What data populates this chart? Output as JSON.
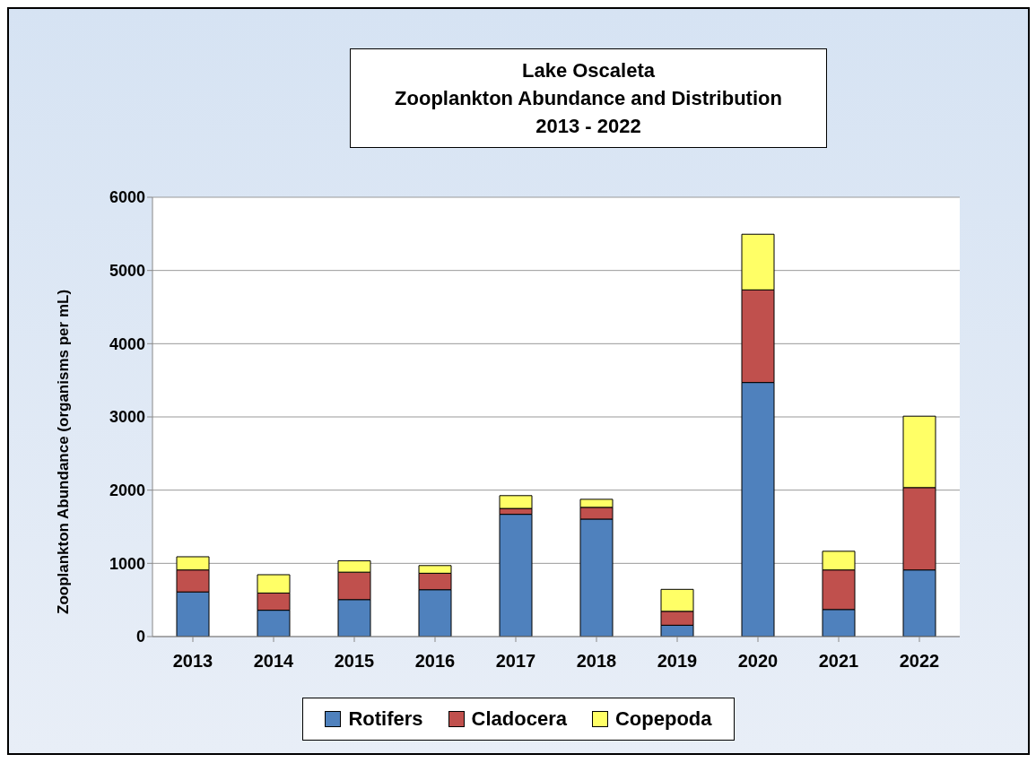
{
  "chart_data": {
    "type": "bar",
    "title": "Lake Oscaleta\nZooplankton Abundance and Distribution\n2013 - 2022",
    "ylabel": "Zooplankton Abundance (organisms per mL)",
    "categories": [
      "2013",
      "2014",
      "2015",
      "2016",
      "2017",
      "2018",
      "2019",
      "2020",
      "2021",
      "2022"
    ],
    "series": [
      {
        "name": "Rotifers",
        "color": "#4f81bd",
        "values": [
          610,
          360,
          505,
          640,
          1670,
          1605,
          155,
          3470,
          370,
          910
        ]
      },
      {
        "name": "Cladocera",
        "color": "#c0504d",
        "values": [
          300,
          235,
          375,
          225,
          80,
          160,
          190,
          1265,
          540,
          1125
        ]
      },
      {
        "name": "Copepoda",
        "color": "#ffff66",
        "values": [
          180,
          250,
          155,
          105,
          175,
          110,
          300,
          760,
          255,
          975
        ]
      }
    ],
    "stacked": true,
    "ylim": [
      0,
      6000
    ],
    "yticks": [
      0,
      1000,
      2000,
      3000,
      4000,
      5000,
      6000
    ],
    "grid": "y",
    "legend": "bottom"
  }
}
